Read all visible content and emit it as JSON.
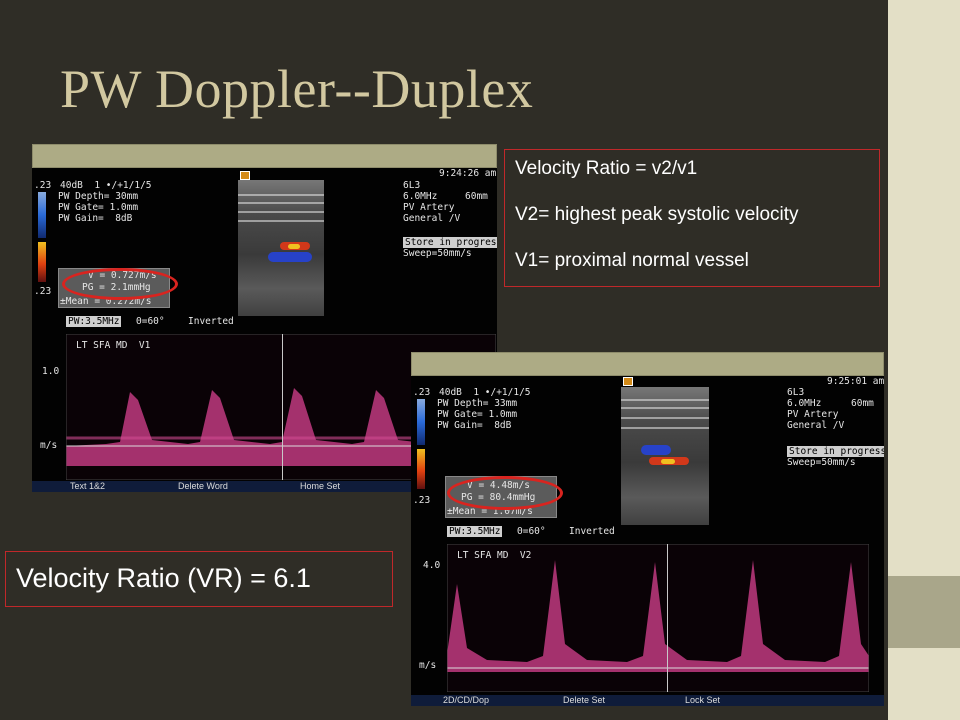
{
  "slide": {
    "title": "PW Doppler--Duplex",
    "colors": {
      "background": "#2f2d26",
      "title": "#d2c8a0",
      "highlight": "#c0282a",
      "spectral": "#d03a86"
    }
  },
  "info_box": {
    "lines": [
      "Velocity Ratio = v2/v1",
      "V2= highest peak systolic velocity",
      "V1= proximal normal vessel"
    ]
  },
  "result_box": {
    "text": "Velocity Ratio (VR) = 6.1"
  },
  "panel1": {
    "time": "9:24:26 am",
    "scale_top": ".23",
    "scale_bottom": ".23",
    "settings": [
      "40dB  1 •/+1/1/5",
      "PW Depth= 30mm",
      "PW Gate= 1.0mm",
      "PW Gain=  8dB"
    ],
    "probe": [
      "6L3",
      "6.0MHz",
      "PV Artery",
      "General /V"
    ],
    "depth": "60mm",
    "store": "Store in progress",
    "sweep": "Sweep=50mm/s",
    "measure": [
      "V = 0.727m/s",
      "PG = 2.1mmHg",
      "±Mean = 0.272m/s"
    ],
    "pw": "PW:3.5MHz",
    "angle": "Θ=60°",
    "inverted": "Inverted",
    "trace_label": "LT SFA MD  V1",
    "scale_value": "1.0",
    "unit": "m/s",
    "bottom": [
      "Text 1&2",
      "Delete Word",
      "Home Set"
    ]
  },
  "panel2": {
    "time": "9:25:01 am",
    "scale_top": ".23",
    "scale_bottom": ".23",
    "settings": [
      "40dB  1 •/+1/1/5",
      "PW Depth= 33mm",
      "PW Gate= 1.0mm",
      "PW Gain=  8dB"
    ],
    "probe": [
      "6L3",
      "6.0MHz",
      "PV Artery",
      "General /V"
    ],
    "depth": "60mm",
    "store": "Store in progress",
    "sweep": "Sweep=50mm/s",
    "measure": [
      "V = 4.48m/s",
      "PG = 80.4mmHg",
      "±Mean = 1.07m/s"
    ],
    "pw": "PW:3.5MHz",
    "angle": "Θ=60°",
    "inverted": "Inverted",
    "trace_label": "LT SFA MD  V2",
    "scale_value": "4.0",
    "unit": "m/s",
    "bottom": [
      "2D/CD/Dop",
      "Delete Set",
      "Lock Set"
    ]
  }
}
